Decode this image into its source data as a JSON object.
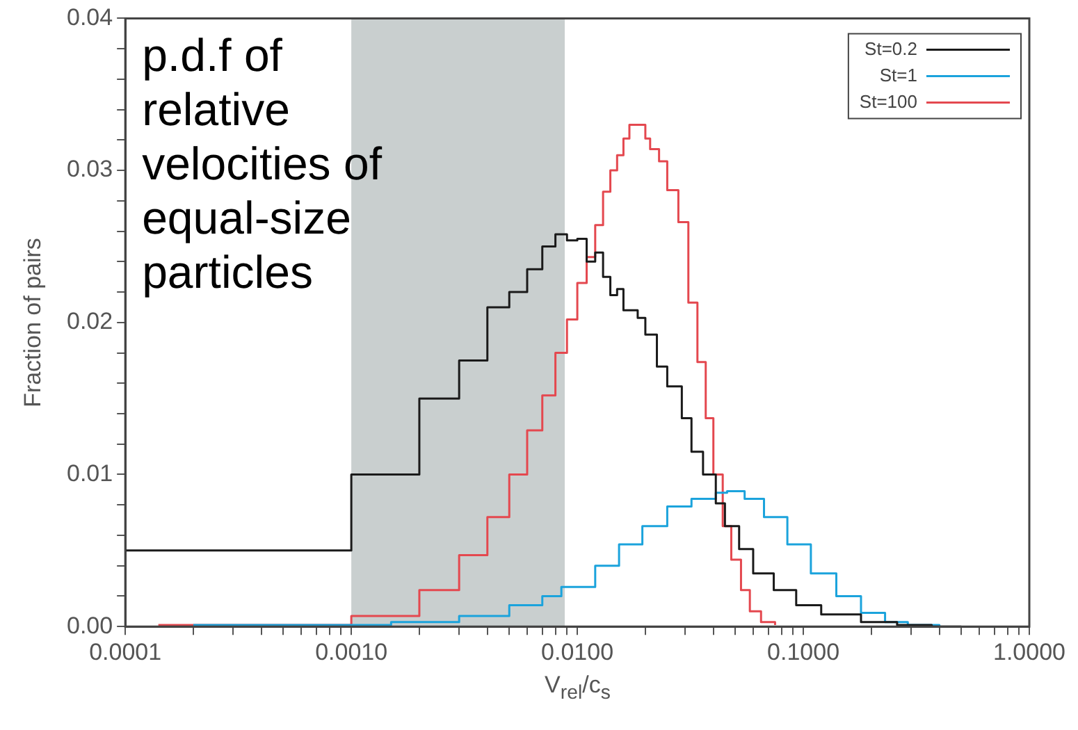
{
  "chart_data": {
    "type": "step",
    "xlabel": "V$_{rel}$/c$_{s}$",
    "ylabel": "Fraction of pairs",
    "annotations": [
      "p.d.f of relative velocities of equal-size particles"
    ],
    "log": "x",
    "legend": "top right",
    "marker": "none",
    "line_style": "solid",
    "xlim": [
      0.0001,
      1
    ],
    "ylim": [
      0,
      0.04
    ],
    "xticks": [
      {
        "value": 0.0001,
        "label": "0.0001"
      },
      {
        "value": 0.0002,
        "label": null
      },
      {
        "value": 0.0003,
        "label": null
      },
      {
        "value": 0.0004,
        "label": null
      },
      {
        "value": 0.0005,
        "label": null
      },
      {
        "value": 0.0006,
        "label": null
      },
      {
        "value": 0.0007,
        "label": null
      },
      {
        "value": 0.0008,
        "label": null
      },
      {
        "value": 0.0009,
        "label": null
      },
      {
        "value": 0.001,
        "label": "0.0010"
      },
      {
        "value": 0.002,
        "label": null
      },
      {
        "value": 0.003,
        "label": null
      },
      {
        "value": 0.004,
        "label": null
      },
      {
        "value": 0.005,
        "label": null
      },
      {
        "value": 0.006,
        "label": null
      },
      {
        "value": 0.007,
        "label": null
      },
      {
        "value": 0.008,
        "label": null
      },
      {
        "value": 0.009,
        "label": null
      },
      {
        "value": 0.01,
        "label": "0.0100"
      },
      {
        "value": 0.02,
        "label": null
      },
      {
        "value": 0.03,
        "label": null
      },
      {
        "value": 0.04,
        "label": null
      },
      {
        "value": 0.05,
        "label": null
      },
      {
        "value": 0.06,
        "label": null
      },
      {
        "value": 0.07,
        "label": null
      },
      {
        "value": 0.08,
        "label": null
      },
      {
        "value": 0.09,
        "label": null
      },
      {
        "value": 0.1,
        "label": "0.1000"
      },
      {
        "value": 0.2,
        "label": null
      },
      {
        "value": 0.3,
        "label": null
      },
      {
        "value": 0.4,
        "label": null
      },
      {
        "value": 0.5,
        "label": null
      },
      {
        "value": 0.6,
        "label": null
      },
      {
        "value": 0.7,
        "label": null
      },
      {
        "value": 0.8,
        "label": null
      },
      {
        "value": 0.9,
        "label": null
      },
      {
        "value": 1,
        "label": "1.0000"
      }
    ],
    "yticks": [
      {
        "value": 0,
        "label": "0.00"
      },
      {
        "value": 0.002,
        "label": null
      },
      {
        "value": 0.004,
        "label": null
      },
      {
        "value": 0.006,
        "label": null
      },
      {
        "value": 0.008,
        "label": null
      },
      {
        "value": 0.01,
        "label": "0.01"
      },
      {
        "value": 0.012,
        "label": null
      },
      {
        "value": 0.014,
        "label": null
      },
      {
        "value": 0.016,
        "label": null
      },
      {
        "value": 0.018,
        "label": null
      },
      {
        "value": 0.02,
        "label": "0.02"
      },
      {
        "value": 0.022,
        "label": null
      },
      {
        "value": 0.024,
        "label": null
      },
      {
        "value": 0.026,
        "label": null
      },
      {
        "value": 0.028,
        "label": null
      },
      {
        "value": 0.03,
        "label": "0.03"
      },
      {
        "value": 0.032,
        "label": null
      },
      {
        "value": 0.034,
        "label": null
      },
      {
        "value": 0.036,
        "label": null
      },
      {
        "value": 0.038,
        "label": null
      },
      {
        "value": 0.04,
        "label": "0.04"
      }
    ],
    "bands": [
      {
        "axis": "x",
        "from": 0.001,
        "to": 0.0088,
        "color": "#c9cfcf"
      }
    ],
    "series": [
      {
        "name": "St=0.2",
        "color": "#1a1a1a",
        "x": [
          0.0001,
          0.001,
          0.002,
          0.003,
          0.004,
          0.005,
          0.006,
          0.007,
          0.008,
          0.009,
          0.01,
          0.011,
          0.012,
          0.013,
          0.014,
          0.015,
          0.016,
          0.0185,
          0.02,
          0.0225,
          0.025,
          0.029,
          0.032,
          0.036,
          0.041,
          0.045,
          0.052,
          0.06,
          0.074,
          0.093,
          0.12,
          0.18,
          0.26,
          0.37,
          0.5
        ],
        "values": [
          0.005,
          0.01,
          0.015,
          0.0175,
          0.021,
          0.022,
          0.0235,
          0.025,
          0.0258,
          0.0254,
          0.0255,
          0.024,
          0.0246,
          0.023,
          0.0218,
          0.0222,
          0.0208,
          0.0203,
          0.0192,
          0.0171,
          0.0158,
          0.0137,
          0.0115,
          0.01,
          0.0081,
          0.0066,
          0.0051,
          0.0035,
          0.0024,
          0.0014,
          0.0008,
          0.0003,
          0.0001,
          0,
          0
        ]
      },
      {
        "name": "St=1",
        "color": "#1ba3dc",
        "x": [
          0.0002,
          0.001,
          0.0015,
          0.003,
          0.005,
          0.007,
          0.0085,
          0.012,
          0.0153,
          0.0194,
          0.025,
          0.032,
          0.041,
          0.046,
          0.055,
          0.067,
          0.085,
          0.108,
          0.14,
          0.18,
          0.23,
          0.29,
          0.4
        ],
        "values": [
          0.0001,
          0.0001,
          0.0003,
          0.0007,
          0.0014,
          0.002,
          0.0026,
          0.004,
          0.0054,
          0.0066,
          0.0079,
          0.0084,
          0.0088,
          0.0089,
          0.0084,
          0.0072,
          0.0054,
          0.0035,
          0.002,
          0.0009,
          0.0003,
          0.0001,
          0
        ]
      },
      {
        "name": "St=100",
        "color": "#e4484f",
        "x": [
          0.00014,
          0.001,
          0.002,
          0.003,
          0.004,
          0.005,
          0.006,
          0.007,
          0.008,
          0.009,
          0.01,
          0.011,
          0.012,
          0.013,
          0.014,
          0.015,
          0.016,
          0.017,
          0.018,
          0.019,
          0.02,
          0.021,
          0.023,
          0.025,
          0.028,
          0.031,
          0.034,
          0.037,
          0.04,
          0.044,
          0.048,
          0.053,
          0.058,
          0.065,
          0.075
        ],
        "values": [
          0.0001,
          0.0007,
          0.0024,
          0.0047,
          0.0072,
          0.01,
          0.0129,
          0.0152,
          0.018,
          0.0202,
          0.0226,
          0.0243,
          0.0264,
          0.0286,
          0.03,
          0.031,
          0.0321,
          0.033,
          0.033,
          0.033,
          0.0321,
          0.0314,
          0.0306,
          0.0287,
          0.0266,
          0.0213,
          0.0174,
          0.0137,
          0.01,
          0.0066,
          0.0044,
          0.0024,
          0.001,
          0.0003,
          0.0001
        ]
      }
    ]
  }
}
